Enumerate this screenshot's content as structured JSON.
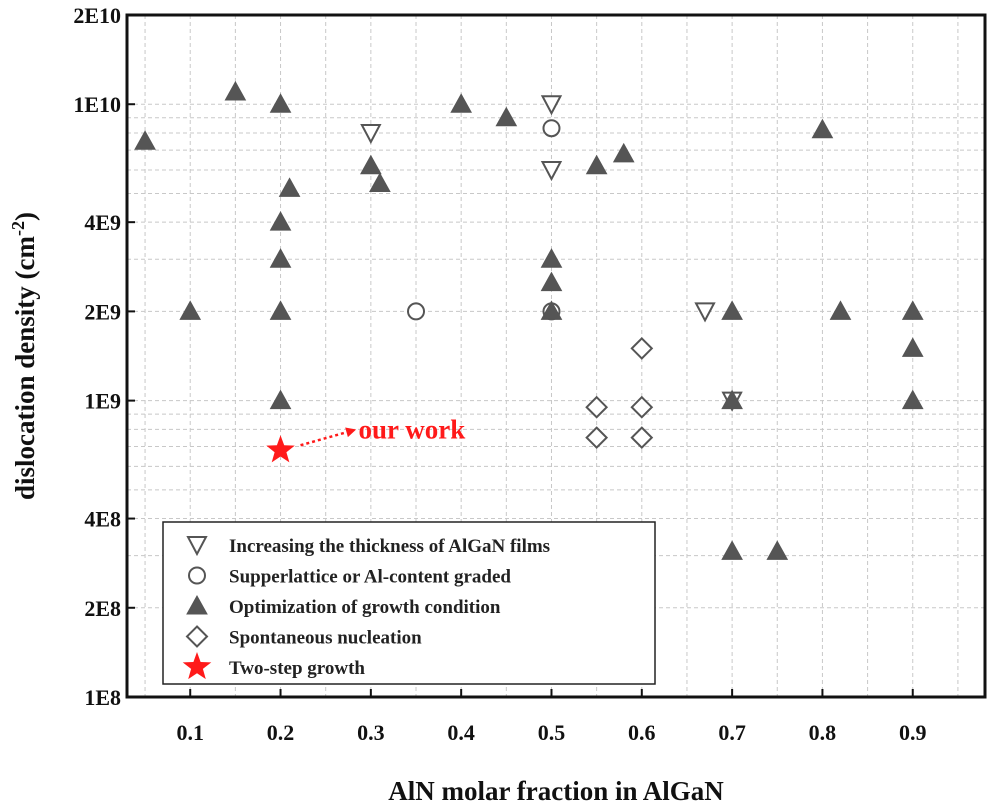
{
  "chart_data": {
    "type": "scatter",
    "xlabel": "AlN molar fraction in AlGaN",
    "ylabel": "dislocation density (cm",
    "ylabel_sup": "-2",
    "ylabel_close": ")",
    "xlim": [
      0.03,
      0.98
    ],
    "ylim": [
      100000000.0,
      20000000000.0
    ],
    "y_scale": "log",
    "grid": true,
    "x_ticks": [
      0.1,
      0.2,
      0.3,
      0.4,
      0.5,
      0.6,
      0.7,
      0.8,
      0.9
    ],
    "x_tick_labels": [
      "0.1",
      "0.2",
      "0.3",
      "0.4",
      "0.5",
      "0.6",
      "0.7",
      "0.8",
      "0.9"
    ],
    "y_ticks": [
      100000000.0,
      200000000.0,
      400000000.0,
      1000000000.0,
      2000000000.0,
      4000000000.0,
      10000000000.0,
      20000000000.0
    ],
    "y_tick_labels": [
      "1E8",
      "2E8",
      "4E8",
      "1E9",
      "2E9",
      "4E9",
      "1E10",
      "2E10"
    ],
    "legend_position": "bottom-left",
    "series": [
      {
        "name": "Increasing the thickness of AlGaN films",
        "marker": "triangle-down-open",
        "color": "#555555",
        "points": [
          [
            0.3,
            8000000000.0
          ],
          [
            0.5,
            10000000000.0
          ],
          [
            0.5,
            6000000000.0
          ],
          [
            0.67,
            2000000000.0
          ],
          [
            0.7,
            1000000000.0
          ]
        ]
      },
      {
        "name": "Supperlattice or Al-content graded",
        "marker": "circle-open",
        "color": "#555555",
        "points": [
          [
            0.35,
            2000000000.0
          ],
          [
            0.5,
            8300000000.0
          ],
          [
            0.5,
            2000000000.0
          ]
        ]
      },
      {
        "name": "Optimization of growth condition",
        "marker": "triangle-up-filled",
        "color": "#555555",
        "points": [
          [
            0.05,
            7500000000.0
          ],
          [
            0.1,
            2000000000.0
          ],
          [
            0.15,
            11000000000.0
          ],
          [
            0.2,
            10000000000.0
          ],
          [
            0.2,
            4000000000.0
          ],
          [
            0.2,
            3000000000.0
          ],
          [
            0.2,
            2000000000.0
          ],
          [
            0.2,
            1000000000.0
          ],
          [
            0.21,
            5200000000.0
          ],
          [
            0.3,
            6200000000.0
          ],
          [
            0.31,
            5400000000.0
          ],
          [
            0.4,
            10000000000.0
          ],
          [
            0.45,
            9000000000.0
          ],
          [
            0.5,
            3000000000.0
          ],
          [
            0.5,
            2500000000.0
          ],
          [
            0.5,
            2000000000.0
          ],
          [
            0.55,
            6200000000.0
          ],
          [
            0.58,
            6800000000.0
          ],
          [
            0.7,
            2000000000.0
          ],
          [
            0.7,
            1000000000.0
          ],
          [
            0.7,
            310000000.0
          ],
          [
            0.75,
            310000000.0
          ],
          [
            0.8,
            8200000000.0
          ],
          [
            0.82,
            2000000000.0
          ],
          [
            0.9,
            2000000000.0
          ],
          [
            0.9,
            1500000000.0
          ],
          [
            0.9,
            1000000000.0
          ]
        ]
      },
      {
        "name": "Spontaneous nucleation",
        "marker": "diamond-open",
        "color": "#555555",
        "points": [
          [
            0.55,
            950000000.0
          ],
          [
            0.6,
            950000000.0
          ],
          [
            0.6,
            1500000000.0
          ],
          [
            0.55,
            750000000.0
          ],
          [
            0.6,
            750000000.0
          ]
        ]
      },
      {
        "name": "Two-step growth",
        "marker": "star-filled",
        "color": "#ff1a1a",
        "points": [
          [
            0.2,
            680000000.0
          ]
        ]
      }
    ],
    "annotations": [
      {
        "text": "our work",
        "color": "#ff1a1a",
        "points_to": [
          0.2,
          680000000.0
        ]
      }
    ]
  }
}
